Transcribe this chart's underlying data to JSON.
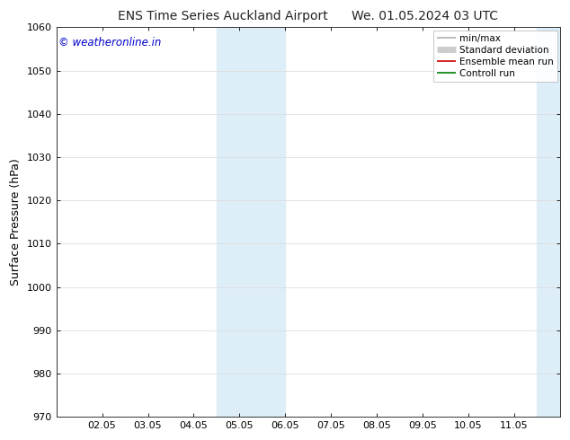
{
  "title_left": "ENS Time Series Auckland Airport",
  "title_right": "We. 01.05.2024 03 UTC",
  "ylabel": "Surface Pressure (hPa)",
  "ylim": [
    970,
    1060
  ],
  "yticks": [
    970,
    980,
    990,
    1000,
    1010,
    1020,
    1030,
    1040,
    1050,
    1060
  ],
  "xtick_labels": [
    "02.05",
    "03.05",
    "04.05",
    "05.05",
    "06.05",
    "07.05",
    "08.05",
    "09.05",
    "10.05",
    "11.05"
  ],
  "xtick_positions": [
    1,
    2,
    3,
    4,
    5,
    6,
    7,
    8,
    9,
    10
  ],
  "xlim": [
    0,
    11
  ],
  "shaded_bands": [
    {
      "xmin": 3.5,
      "xmax": 5.0,
      "color": "#ddeef8"
    },
    {
      "xmin": 10.5,
      "xmax": 11.0,
      "color": "#ddeef8"
    }
  ],
  "watermark": "© weatheronline.in",
  "watermark_color": "#0000cc",
  "legend_items": [
    {
      "label": "min/max",
      "color": "#b0b0b0",
      "lw": 1.2
    },
    {
      "label": "Standard deviation",
      "color": "#cccccc",
      "lw": 5
    },
    {
      "label": "Ensemble mean run",
      "color": "#cc0000",
      "lw": 1.2
    },
    {
      "label": "Controll run",
      "color": "#008000",
      "lw": 1.2
    }
  ],
  "background_color": "#ffffff",
  "plot_bg_color": "#ffffff",
  "grid_color": "#dddddd",
  "title_fontsize": 10,
  "ylabel_fontsize": 9,
  "tick_fontsize": 8,
  "watermark_fontsize": 8.5,
  "legend_fontsize": 7.5
}
